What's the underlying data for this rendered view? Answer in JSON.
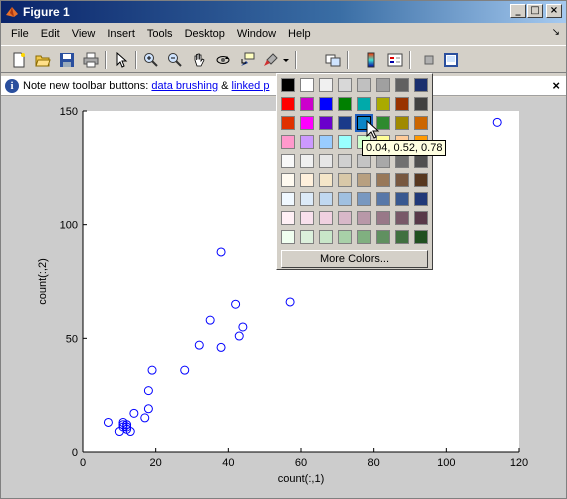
{
  "window": {
    "title": "Figure 1",
    "controls": {
      "minimize": "_",
      "maximize": "□",
      "close": "×"
    }
  },
  "menubar": {
    "items": [
      "File",
      "Edit",
      "View",
      "Insert",
      "Tools",
      "Desktop",
      "Window",
      "Help"
    ],
    "overflow_glyph": "↘"
  },
  "toolbar": {
    "buttons": [
      "new-figure-icon",
      "open-file-icon",
      "save-icon",
      "print-icon",
      "pointer-icon",
      "zoom-in-icon",
      "zoom-out-icon",
      "pan-hand-icon",
      "rotate-3d-icon",
      "data-cursor-icon",
      "brush-icon",
      "brush-dropdown-icon",
      "link-plot-icon",
      "colorbar-icon",
      "legend-icon",
      "hide-plot-tools-icon",
      "show-plot-tools-icon"
    ]
  },
  "infobar": {
    "prefix": "Note new toolbar buttons: ",
    "link1": "data brushing",
    "between": " & ",
    "link2": "linked p",
    "close": "×"
  },
  "palette": {
    "rows": [
      [
        "#000000",
        "#ffffff",
        "#f0f0f0",
        "#d8d8d8",
        "#c0c0c0",
        "#a0a0a0",
        "#606060",
        "#1a2f6e"
      ],
      [
        "#ff0000",
        "#cc00cc",
        "#0000ff",
        "#008000",
        "#00aaaa",
        "#aaaa00",
        "#993300",
        "#404040"
      ],
      [
        "#e03000",
        "#ff00ff",
        "#6a00cc",
        "#1a3a8a",
        "#0a85c7",
        "#2e8a2e",
        "#a08a00",
        "#cc6600"
      ],
      [
        "#ff99cc",
        "#cc99ff",
        "#99ccff",
        "#99ffff",
        "#ccffcc",
        "#ffff99",
        "#ffcc99",
        "#ff9900"
      ],
      [
        "#f8f8f8",
        "#f0f0f0",
        "#e6e6e6",
        "#d0d0d0",
        "#c4c4c4",
        "#a8a8a8",
        "#707070",
        "#505050"
      ],
      [
        "#fffaf0",
        "#fff0dc",
        "#f5e6c8",
        "#d8c8a8",
        "#b8a080",
        "#987858",
        "#785840",
        "#583820"
      ],
      [
        "#f0f8ff",
        "#dceaf8",
        "#c0d8f0",
        "#a0c0e0",
        "#7898c0",
        "#5878a8",
        "#385890",
        "#203878"
      ],
      [
        "#fff0f5",
        "#f8e0ec",
        "#f0d0e0",
        "#d8b8c8",
        "#b898a8",
        "#987888",
        "#785868",
        "#583848"
      ],
      [
        "#f0fff0",
        "#dcf0dc",
        "#c8e6c8",
        "#a8d0a8",
        "#80b080",
        "#609060",
        "#407040",
        "#205020"
      ]
    ],
    "selected": {
      "row": 2,
      "col": 4
    },
    "more_colors": "More Colors...",
    "tooltip": "0.04, 0.52, 0.78"
  },
  "chart_data": {
    "type": "scatter",
    "xlabel": "count(:,1)",
    "ylabel": "count(:,2)",
    "xlim": [
      0,
      120
    ],
    "ylim": [
      0,
      150
    ],
    "xticks": [
      0,
      20,
      40,
      60,
      80,
      100,
      120
    ],
    "yticks": [
      0,
      50,
      100,
      150
    ],
    "marker": "o",
    "marker_color": "#0000ff",
    "points": [
      [
        7,
        13
      ],
      [
        10,
        9
      ],
      [
        11,
        11
      ],
      [
        11,
        12
      ],
      [
        11,
        13
      ],
      [
        12,
        11
      ],
      [
        12,
        12
      ],
      [
        12,
        10
      ],
      [
        13,
        9
      ],
      [
        14,
        17
      ],
      [
        17,
        15
      ],
      [
        18,
        19
      ],
      [
        18,
        27
      ],
      [
        19,
        36
      ],
      [
        28,
        36
      ],
      [
        32,
        47
      ],
      [
        35,
        58
      ],
      [
        38,
        46
      ],
      [
        38,
        88
      ],
      [
        42,
        65
      ],
      [
        43,
        51
      ],
      [
        44,
        55
      ],
      [
        57,
        66
      ],
      [
        114,
        145
      ]
    ]
  }
}
